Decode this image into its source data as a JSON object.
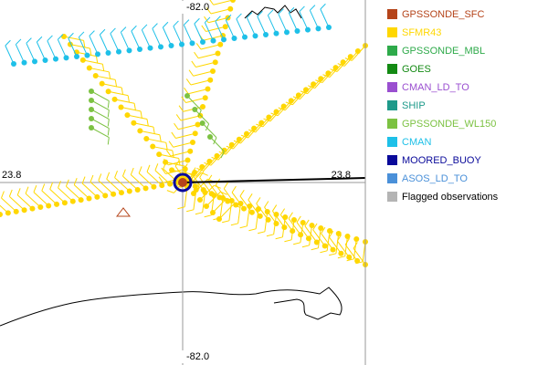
{
  "map": {
    "labels": {
      "lon_top": "-82.0",
      "lon_bottom": "-82.0",
      "lat_left": "23.8",
      "lat_right": "23.8"
    },
    "legend": [
      {
        "name": "GPSSONDE_SFC",
        "color": "#b5441a"
      },
      {
        "name": "SFMR43",
        "color": "#ffd700"
      },
      {
        "name": "GPSSONDE_MBL",
        "color": "#2eaa4a"
      },
      {
        "name": "GOES",
        "color": "#138a13"
      },
      {
        "name": "CMAN_LD_TO",
        "color": "#9a4fd0"
      },
      {
        "name": "SHIP",
        "color": "#1e9a8a"
      },
      {
        "name": "GPSSONDE_WL150",
        "color": "#7cc242"
      },
      {
        "name": "CMAN",
        "color": "#1ec0e8"
      },
      {
        "name": "MOORED_BUOY",
        "color": "#0a0a9a"
      },
      {
        "name": "ASOS_LD_TO",
        "color": "#4a90d9"
      },
      {
        "name": "Flagged observations",
        "color": "#b4b4b4",
        "text_color": "#000000"
      }
    ]
  }
}
